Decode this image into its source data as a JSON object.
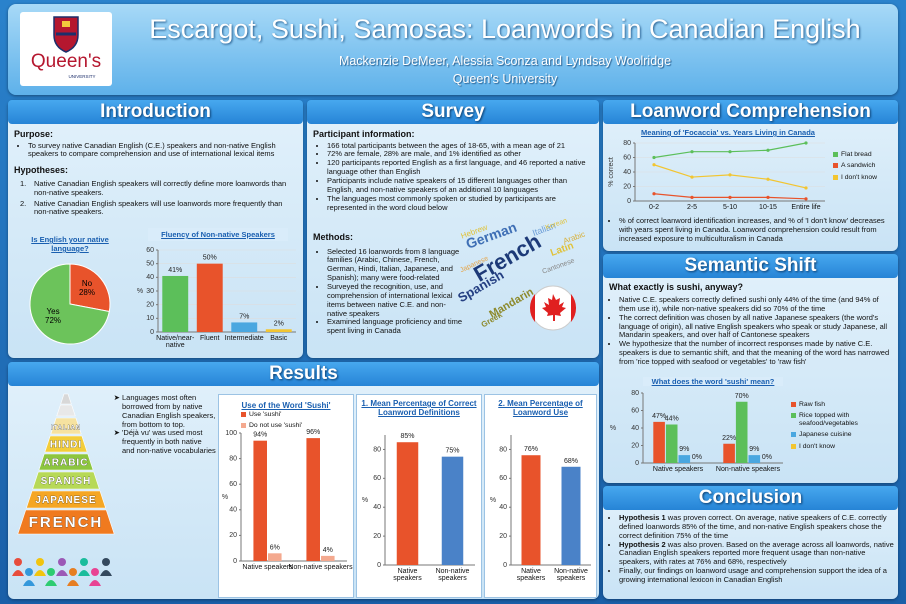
{
  "header": {
    "title": "Escargot, Sushi, Samosas: Loanwords in Canadian English",
    "authors": "Mackenzie DeMeer, Alessia Sconza and Lyndsay Woolridge",
    "affiliation": "Queen's University",
    "logo_text": "Queen's",
    "logo_subtext": "UNIVERSITY"
  },
  "introduction": {
    "heading": "Introduction",
    "purpose_heading": "Purpose:",
    "purpose": [
      "To survey native Canadian English (C.E.) speakers and non-native English speakers to compare comprehension and use of international lexical items"
    ],
    "hypotheses_heading": "Hypotheses:",
    "hypotheses": [
      {
        "number": "1.",
        "text": "Native Canadian English speakers will correctly define more loanwords than non-native speakers."
      },
      {
        "number": "2.",
        "text": "Native Canadian English speakers will use loanwords more frequently than non-native speakers."
      }
    ],
    "charts": [
      {
        "type": "pie",
        "title": "Is English your native language?",
        "categories": [
          "No",
          "Yes"
        ],
        "values": [
          28,
          72
        ],
        "value_labels": [
          "28%",
          "72%"
        ],
        "colors": [
          "#e8532b",
          "#6cc35b"
        ]
      },
      {
        "type": "bar",
        "title": "Fluency of Non-native Speakers",
        "ylabel": "%",
        "categories": [
          "Native/near-native",
          "Fluent",
          "Intermediate",
          "Basic"
        ],
        "values": [
          41,
          50,
          7,
          2
        ],
        "value_labels": [
          "41%",
          "50%",
          "7%",
          "2%"
        ],
        "colors": [
          "#5cbf5a",
          "#e8532b",
          "#4aa7e0",
          "#f2c531"
        ],
        "ylim": [
          0,
          60
        ],
        "yticks": [
          0,
          10,
          20,
          30,
          40,
          50,
          60
        ],
        "grid": true
      }
    ]
  },
  "survey": {
    "heading": "Survey",
    "info_heading": "Participant information:",
    "info": [
      "166 total participants between the ages of 18-65, with a mean age of 21",
      "72% are female, 28% are male, and 1% identified as other",
      "120 participants reported English as a first language, and 46 reported a native language other than English",
      "Participants include native speakers of 15 different languages other than English, and non-native speakers of an additional 10 languages",
      "The languages most commonly spoken or studied by participants are represented in the word cloud below"
    ],
    "methods_heading": "Methods:",
    "methods": [
      "Selected 16 loanwords from 8 language families (Arabic, Chinese, French, German, Hindi, Italian, Japanese, and Spanish); many were food-related",
      "Surveyed the recognition, use, and comprehension of international lexical items between native C.E. and non-native speakers",
      "Examined language proficiency and time spent living in Canada"
    ],
    "word_cloud": [
      "French",
      "German",
      "Spanish",
      "Mandarin",
      "Italian",
      "Latin",
      "Arabic",
      "Hebrew",
      "Greek",
      "Cantonese",
      "Japanese",
      "Korean"
    ]
  },
  "loanword_comprehension": {
    "heading": "Loanword Comprehension",
    "chart": {
      "type": "line",
      "title": "Meaning of 'Focaccia' vs. Years Living in Canada",
      "ylabel": "% correct",
      "categories": [
        "0-2",
        "2-5",
        "5-10",
        "10-15",
        "Entire life"
      ],
      "series": [
        {
          "name": "Flat bread",
          "color": "#5cbf5a",
          "values": [
            60,
            68,
            68,
            70,
            80
          ]
        },
        {
          "name": "A sandwich",
          "color": "#e8532b",
          "values": [
            10,
            5,
            5,
            5,
            3
          ]
        },
        {
          "name": "I don't know",
          "color": "#f2c531",
          "values": [
            50,
            33,
            36,
            30,
            18
          ]
        }
      ],
      "ylim": [
        0,
        80
      ],
      "yticks": [
        0,
        20,
        40,
        60,
        80
      ],
      "grid": true,
      "legend": "right"
    },
    "notes": [
      "% of correct loanword identification increases, and % of 'I don't know' decreases with years spent living in Canada. Loanword comprehension could result from increased exposure to multiculturalism in Canada"
    ]
  },
  "semantic_shift": {
    "heading": "Semantic Shift",
    "question": "What exactly is sushi, anyway?",
    "points": [
      "Native C.E. speakers correctly defined sushi only 44% of the time (and 94% of them use it), while non-native speakers did so 70% of the time",
      "The correct definition was chosen by all native Japanese speakers (the word's language of origin), all native English speakers who speak or study Japanese, all Mandarin speakers, and over half of Cantonese speakers",
      "We hypothesize that the number of incorrect responses made by native C.E. speakers is due to semantic shift, and that the meaning of the word has narrowed from 'rice topped with seafood or vegetables' to 'raw fish'"
    ],
    "chart": {
      "type": "bar",
      "title": "What does the word 'sushi' mean?",
      "ylabel": "%",
      "categories": [
        "Native speakers",
        "Non-native speakers"
      ],
      "series": [
        {
          "name": "Raw fish",
          "color": "#e8532b",
          "values": [
            47,
            22
          ],
          "value_labels": [
            "47%",
            "22%"
          ]
        },
        {
          "name": "Rice topped with seafood/vegetables",
          "color": "#5cbf5a",
          "values": [
            44,
            70
          ],
          "value_labels": [
            "44%",
            "70%"
          ]
        },
        {
          "name": "Japanese cuisine",
          "color": "#4aa7e0",
          "values": [
            9,
            9
          ],
          "value_labels": [
            "9%",
            "9%"
          ]
        },
        {
          "name": "I don't know",
          "color": "#f2c531",
          "values": [
            0,
            0
          ],
          "value_labels": [
            "0%",
            "0%"
          ]
        }
      ],
      "ylim": [
        0,
        80
      ],
      "yticks": [
        0,
        20,
        40,
        60,
        80
      ],
      "legend": "right"
    }
  },
  "conclusion": {
    "heading": "Conclusion",
    "points": [
      {
        "lead": "Hypothesis 1",
        "text": " was proven correct. On average, native speakers of C.E. correctly defined loanwords 85% of the time, and non-native English speakers chose the correct definition 75% of the time"
      },
      {
        "lead": "Hypothesis 2",
        "text": " was also proven. Based on the average across all loanwords, native Canadian English speakers reported more frequent usage than non-native speakers, with rates at 76% and 68%, respectively"
      },
      {
        "text": "Finally, our findings on loanword usage and comprehension support the idea of a growing international lexicon in Canadian English"
      }
    ]
  },
  "results": {
    "heading": "Results",
    "pyramid": [
      "ITALIAN",
      "HINDI",
      "ARABIC",
      "SPANISH",
      "JAPANESE",
      "FRENCH"
    ],
    "pyramid_notes": [
      "Languages most often borrowed from by native Canadian English speakers, from bottom to top.",
      "'Déjà vu' was used most frequently in both native and non-native vocabularies"
    ],
    "charts": [
      {
        "type": "bar",
        "title": "Use of the Word 'Sushi'",
        "ylabel": "%",
        "categories": [
          "Native speakers",
          "Non-native speakers"
        ],
        "series": [
          {
            "name": "Use 'sushi'",
            "color": "#e8532b",
            "values": [
              94,
              96
            ],
            "value_labels": [
              "94%",
              "96%"
            ]
          },
          {
            "name": "Do not use 'sushi'",
            "color": "#f4a98f",
            "values": [
              6,
              4
            ],
            "value_labels": [
              "6%",
              "4%"
            ]
          }
        ],
        "ylim": [
          0,
          100
        ],
        "yticks": [
          0,
          20,
          40,
          60,
          80,
          100
        ],
        "legend": "top"
      },
      {
        "type": "bar",
        "title": "1. Mean Percentage of Correct Loanword Definitions",
        "ylabel": "%",
        "categories": [
          "Native speakers",
          "Non-native speakers"
        ],
        "values": [
          85,
          75
        ],
        "value_labels": [
          "85%",
          "75%"
        ],
        "colors": [
          "#e8532b",
          "#4a82c8"
        ],
        "ylim": [
          0,
          90
        ],
        "yticks": [
          0,
          20,
          40,
          60,
          80
        ]
      },
      {
        "type": "bar",
        "title": "2. Mean Percentage of Loanword Use",
        "ylabel": "%",
        "categories": [
          "Native speakers",
          "Non-native speakers"
        ],
        "values": [
          76,
          68
        ],
        "value_labels": [
          "76%",
          "68%"
        ],
        "colors": [
          "#e8532b",
          "#4a82c8"
        ],
        "ylim": [
          0,
          90
        ],
        "yticks": [
          0,
          20,
          40,
          60,
          80
        ]
      }
    ]
  }
}
